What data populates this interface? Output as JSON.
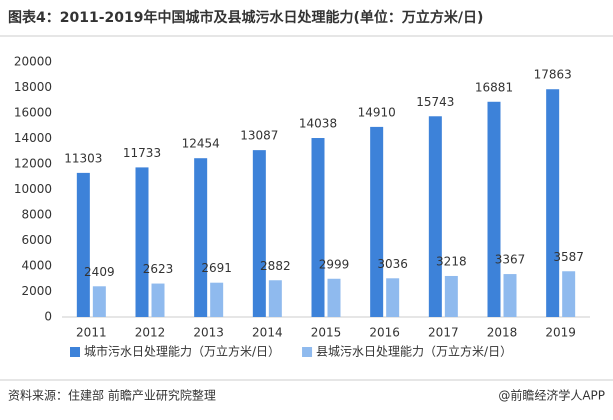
{
  "chart_data": {
    "type": "bar",
    "title": "图表4：2011-2019年中国城市及县城污水日处理能力(单位：万立方米/日)",
    "categories": [
      "2011",
      "2012",
      "2013",
      "2014",
      "2015",
      "2016",
      "2017",
      "2018",
      "2019"
    ],
    "series": [
      {
        "name": "城市污水日处理能力（万立方米/日）",
        "color": "#3d82d9",
        "values": [
          11303,
          11733,
          12454,
          13087,
          14038,
          14910,
          15743,
          16881,
          17863
        ]
      },
      {
        "name": "县城污水日处理能力（万立方米/日）",
        "color": "#8fbaee",
        "values": [
          2409,
          2623,
          2691,
          2882,
          2999,
          3036,
          3218,
          3367,
          3587
        ]
      }
    ],
    "ylim": [
      0,
      20000
    ],
    "yticks": [
      0,
      2000,
      4000,
      6000,
      8000,
      10000,
      12000,
      14000,
      16000,
      18000,
      20000
    ],
    "grid": false,
    "legend": "bottom",
    "source": "资料来源：住建部 前瞻产业研究院整理",
    "credit": "@前瞻经济学人APP"
  }
}
